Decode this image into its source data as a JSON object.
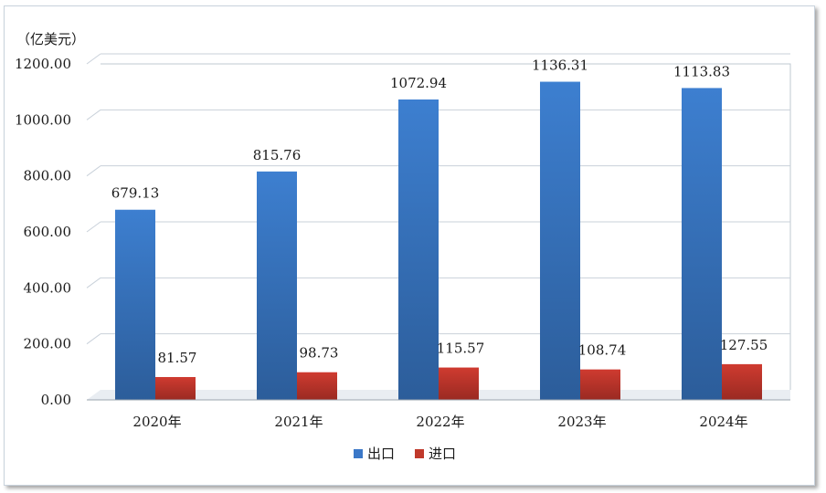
{
  "chart_data": {
    "type": "bar",
    "unit_label": "（亿美元）",
    "categories": [
      "2020年",
      "2021年",
      "2022年",
      "2023年",
      "2024年"
    ],
    "series": [
      {
        "name": "出口",
        "values": [
          679.13,
          815.76,
          1072.94,
          1136.31,
          1113.83
        ],
        "color": "#3b78c8"
      },
      {
        "name": "进口",
        "values": [
          81.57,
          98.73,
          115.57,
          108.74,
          127.55
        ],
        "color": "#c0392b"
      }
    ],
    "ylim": [
      0,
      1200
    ],
    "yticks": [
      "0.00",
      "200.00",
      "400.00",
      "600.00",
      "800.00",
      "1000.00",
      "1200.00"
    ],
    "data_labels": [
      [
        "679.13",
        "815.76",
        "1072.94",
        "1136.31",
        "1113.83"
      ],
      [
        "81.57",
        "98.73",
        "115.57",
        "108.74",
        "127.55"
      ]
    ],
    "grid": true,
    "legend_position": "bottom"
  }
}
